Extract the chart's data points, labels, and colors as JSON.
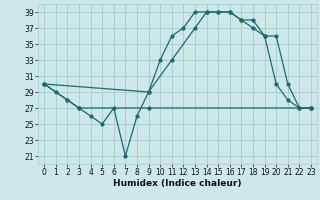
{
  "xlabel": "Humidex (Indice chaleur)",
  "bg_color": "#cce8e8",
  "grid_color": "#aacece",
  "line_color": "#1a6b6b",
  "xlim": [
    -0.5,
    23.5
  ],
  "ylim": [
    20,
    40
  ],
  "yticks": [
    21,
    23,
    25,
    27,
    29,
    31,
    33,
    35,
    37,
    39
  ],
  "xticks": [
    0,
    1,
    2,
    3,
    4,
    5,
    6,
    7,
    8,
    9,
    10,
    11,
    12,
    13,
    14,
    15,
    16,
    17,
    18,
    19,
    20,
    21,
    22,
    23
  ],
  "line1_x": [
    0,
    1,
    2,
    3,
    4,
    5,
    6,
    7,
    8,
    9,
    10,
    11,
    12,
    13,
    14,
    15,
    16,
    17,
    18,
    19,
    20,
    21,
    22,
    23
  ],
  "line1_y": [
    30,
    29,
    28,
    27,
    26,
    25,
    27,
    21,
    26,
    29,
    33,
    36,
    37,
    39,
    39,
    39,
    39,
    38,
    37,
    36,
    30,
    28,
    27,
    27
  ],
  "line2_x": [
    0,
    2,
    3,
    9,
    23
  ],
  "line2_y": [
    30,
    28,
    27,
    27,
    27
  ],
  "line3_x": [
    0,
    9,
    11,
    13,
    14,
    15,
    16,
    17,
    18,
    19,
    20,
    21,
    22,
    23
  ],
  "line3_y": [
    30,
    29,
    33,
    37,
    39,
    39,
    39,
    38,
    38,
    36,
    36,
    30,
    27,
    27
  ]
}
